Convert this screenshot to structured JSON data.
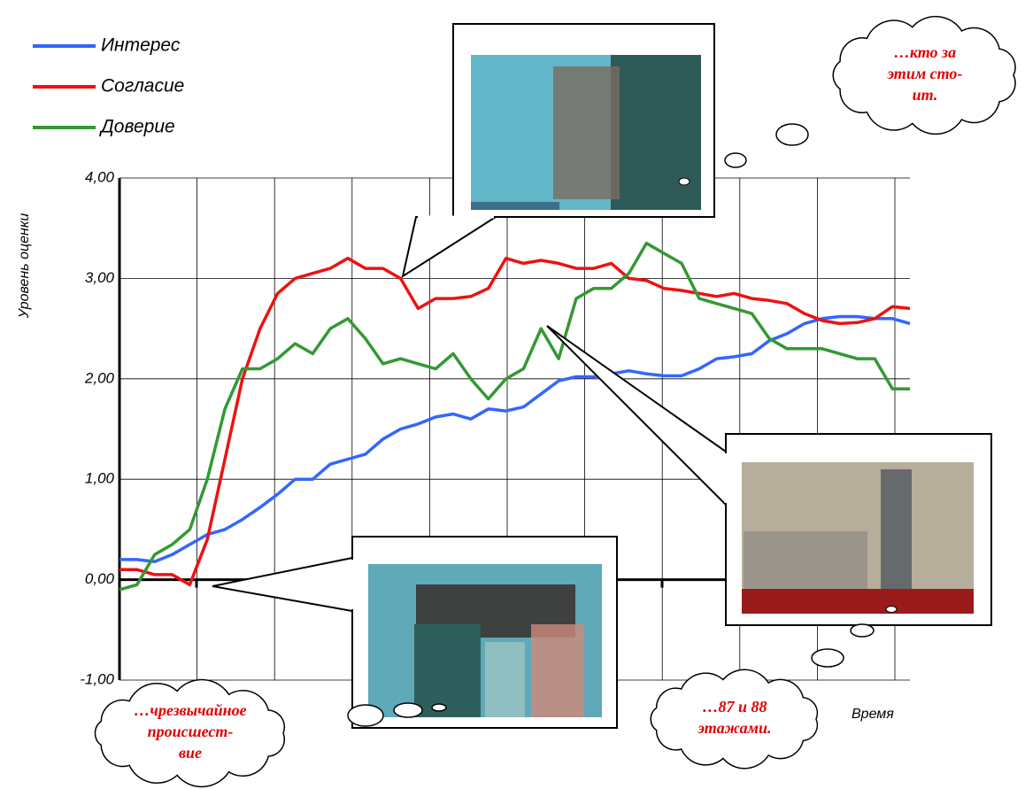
{
  "chart_data": {
    "type": "line",
    "y_label": "Уровень оценки",
    "x_label": "Время",
    "ylim": [
      -1,
      4
    ],
    "yticks": [
      {
        "value": -1,
        "label": "-1,00"
      },
      {
        "value": 0,
        "label": "0,00"
      },
      {
        "value": 1,
        "label": "1,00"
      },
      {
        "value": 2,
        "label": "2,00"
      },
      {
        "value": 3,
        "label": "3,00"
      },
      {
        "value": 4,
        "label": "4,00"
      }
    ],
    "grid": true,
    "legend": "top-left",
    "categories": [
      null,
      null,
      null,
      null,
      null,
      null,
      null,
      null,
      null,
      null,
      null,
      null,
      null,
      null,
      null,
      null,
      null,
      null,
      null,
      null,
      null,
      null,
      null,
      null,
      null,
      null,
      null,
      null,
      null,
      null,
      null,
      null,
      null,
      null,
      null,
      null,
      null,
      null,
      null,
      null,
      null,
      null,
      null,
      null,
      null,
      null
    ],
    "series": [
      {
        "name": "Интерес",
        "color": "#3366ff",
        "values": [
          0.2,
          0.2,
          0.18,
          0.25,
          0.35,
          0.45,
          0.5,
          0.6,
          0.72,
          0.85,
          1.0,
          1.0,
          1.15,
          1.2,
          1.25,
          1.4,
          1.5,
          1.55,
          1.62,
          1.65,
          1.6,
          1.7,
          1.68,
          1.72,
          1.85,
          1.98,
          2.02,
          2.02,
          2.05,
          2.08,
          2.05,
          2.03,
          2.03,
          2.1,
          2.2,
          2.22,
          2.25,
          2.38,
          2.45,
          2.55,
          2.6,
          2.62,
          2.62,
          2.6,
          2.6,
          2.55
        ]
      },
      {
        "name": "Согласие",
        "color": "#ee1111",
        "values": [
          0.1,
          0.1,
          0.05,
          0.05,
          -0.05,
          0.4,
          1.2,
          2.0,
          2.5,
          2.85,
          3.0,
          3.05,
          3.1,
          3.2,
          3.1,
          3.1,
          3.0,
          2.7,
          2.8,
          2.8,
          2.82,
          2.9,
          3.2,
          3.15,
          3.18,
          3.15,
          3.1,
          3.1,
          3.15,
          3.0,
          2.98,
          2.9,
          2.88,
          2.85,
          2.82,
          2.85,
          2.8,
          2.78,
          2.75,
          2.65,
          2.58,
          2.55,
          2.56,
          2.6,
          2.72,
          2.7
        ]
      },
      {
        "name": "Доверие",
        "color": "#339933",
        "values": [
          -0.1,
          -0.05,
          0.25,
          0.35,
          0.5,
          1.0,
          1.7,
          2.1,
          2.1,
          2.2,
          2.35,
          2.25,
          2.5,
          2.6,
          2.4,
          2.15,
          2.2,
          2.15,
          2.1,
          2.25,
          2.0,
          1.8,
          2.0,
          2.1,
          2.5,
          2.2,
          2.8,
          2.9,
          2.9,
          3.05,
          3.35,
          3.25,
          3.15,
          2.8,
          2.75,
          2.7,
          2.65,
          2.4,
          2.3,
          2.3,
          2.3,
          2.25,
          2.2,
          2.2,
          1.9,
          1.9
        ]
      }
    ],
    "annotations": [
      [
        "…кто за",
        "этим сто-",
        "ит."
      ],
      [
        "…чрезвычайное",
        "происшест-",
        "вие"
      ],
      [
        "…87 и 88",
        "этажами."
      ]
    ]
  }
}
